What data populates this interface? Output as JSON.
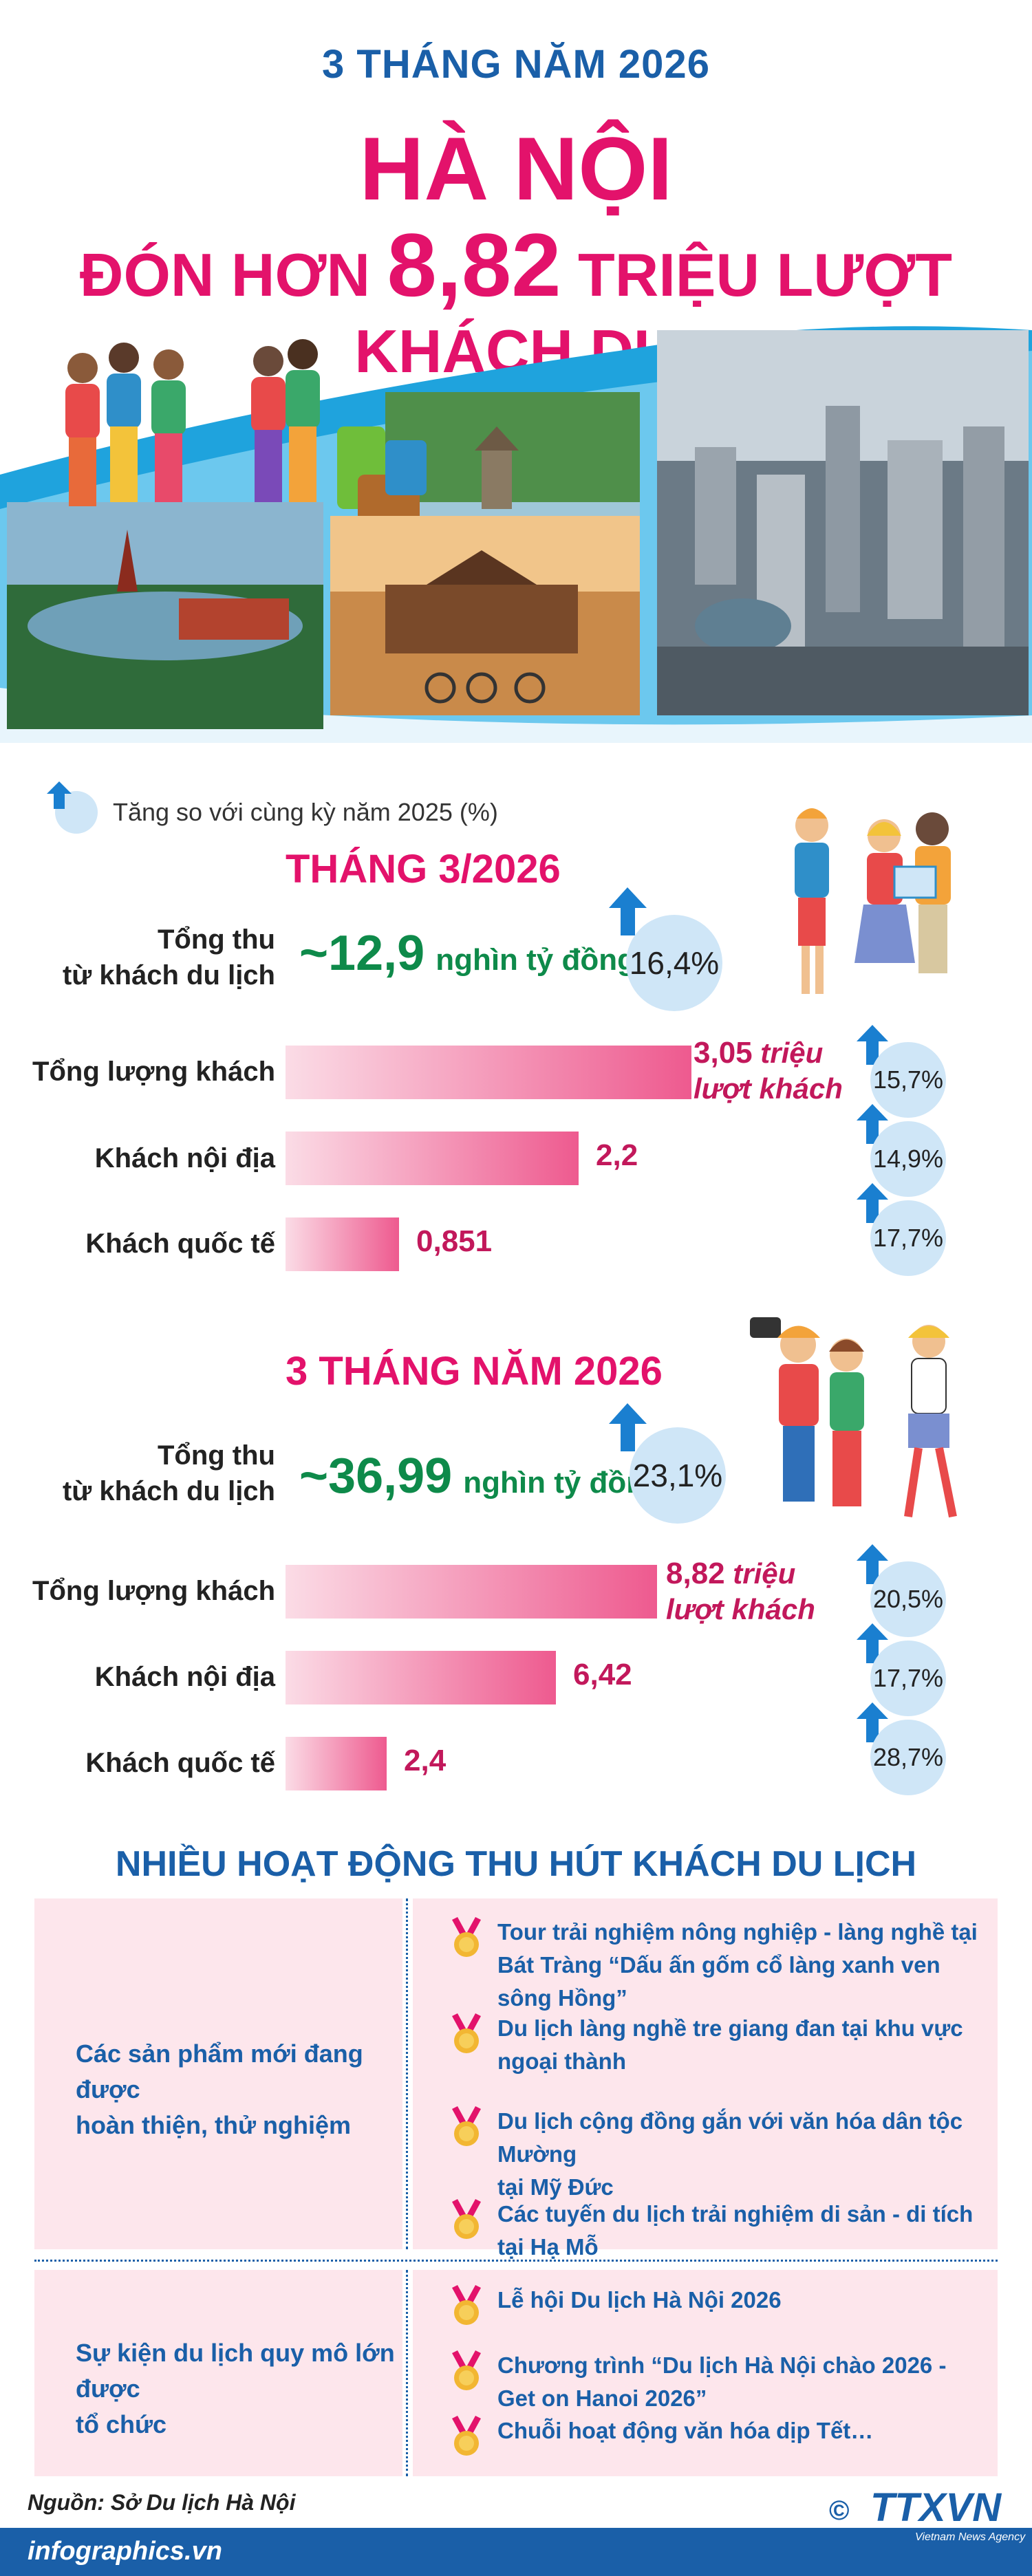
{
  "header": {
    "kicker": "3 THÁNG NĂM 2026",
    "city": "HÀ NỘI",
    "sub_prefix": "ĐÓN HƠN ",
    "sub_number": "8,82",
    "sub_suffix": " TRIỆU LƯỢT KHÁCH DU"
  },
  "legend": {
    "label": "Tăng so với cùng kỳ năm 2025 (%)"
  },
  "month": {
    "title": "THÁNG 3/2026",
    "revenue_label_1": "Tổng thu",
    "revenue_label_2": "từ khách du lịch",
    "revenue_value": "~12,9",
    "revenue_unit": "nghìn tỷ đồng",
    "revenue_pct": "16,4%",
    "rows": [
      {
        "label": "Tổng lượng khách",
        "value": "3,05",
        "unit1": " triệu",
        "unit2": "lượt khách",
        "num": 3.05,
        "pct": "15,7%"
      },
      {
        "label": "Khách nội địa",
        "value": "2,2",
        "num": 2.2,
        "pct": "14,9%"
      },
      {
        "label": "Khách quốc tế",
        "value": "0,851",
        "num": 0.851,
        "pct": "17,7%"
      }
    ]
  },
  "quarter": {
    "title": "3 THÁNG NĂM 2026",
    "revenue_label_1": "Tổng thu",
    "revenue_label_2": "từ khách du lịch",
    "revenue_value": "~36,99",
    "revenue_unit": "nghìn tỷ đồng",
    "revenue_pct": "23,1%",
    "rows": [
      {
        "label": "Tổng lượng khách",
        "value": "8,82",
        "unit1": " triệu",
        "unit2": "lượt khách",
        "num": 8.82,
        "pct": "20,5%"
      },
      {
        "label": "Khách nội địa",
        "value": "6,42",
        "num": 6.42,
        "pct": "17,7%"
      },
      {
        "label": "Khách quốc tế",
        "value": "2,4",
        "num": 2.4,
        "pct": "28,7%"
      }
    ]
  },
  "activities": {
    "title": "NHIỀU HOẠT ĐỘNG THU HÚT KHÁCH DU LỊCH",
    "groups": [
      {
        "left_1": "Các sản phẩm mới đang được",
        "left_2": "hoàn thiện, thử nghiệm",
        "items": [
          {
            "l1": "Tour trải nghiệm nông nghiệp - làng nghề tại",
            "l2": "Bát Tràng “Dấu ấn gốm cổ làng xanh ven sông Hồng”"
          },
          {
            "l1": "Du lịch làng nghề tre giang đan tại khu vực",
            "l2": "ngoại thành"
          },
          {
            "l1": "Du lịch cộng đồng gắn với văn hóa dân tộc Mường",
            "l2": "tại Mỹ Đức"
          },
          {
            "l1": "Các tuyến du lịch trải nghiệm di sản - di tích tại Hạ Mỗ",
            "l2": ""
          }
        ]
      },
      {
        "left_1": "Sự kiện du lịch quy mô lớn được",
        "left_2": "tổ chức",
        "items": [
          {
            "l1": "Lễ hội Du lịch Hà Nội 2026",
            "l2": ""
          },
          {
            "l1": "Chương trình “Du lịch Hà Nội chào 2026 - Get on Hanoi 2026”",
            "l2": ""
          },
          {
            "l1": "Chuỗi hoạt động văn hóa dịp Tết…",
            "l2": ""
          }
        ]
      }
    ]
  },
  "footer": {
    "source": "Nguồn: Sở Du lịch Hà Nội",
    "site": "infographics.vn",
    "copyright": "©",
    "agency": "TTXVN",
    "agency_sub": "Vietnam News Agency"
  },
  "colors": {
    "pink": "#e3126b",
    "blue": "#1a5fa8",
    "green": "#0e8a4a",
    "light_blue": "#cfe6f7",
    "box_pink": "#fde6ec"
  }
}
